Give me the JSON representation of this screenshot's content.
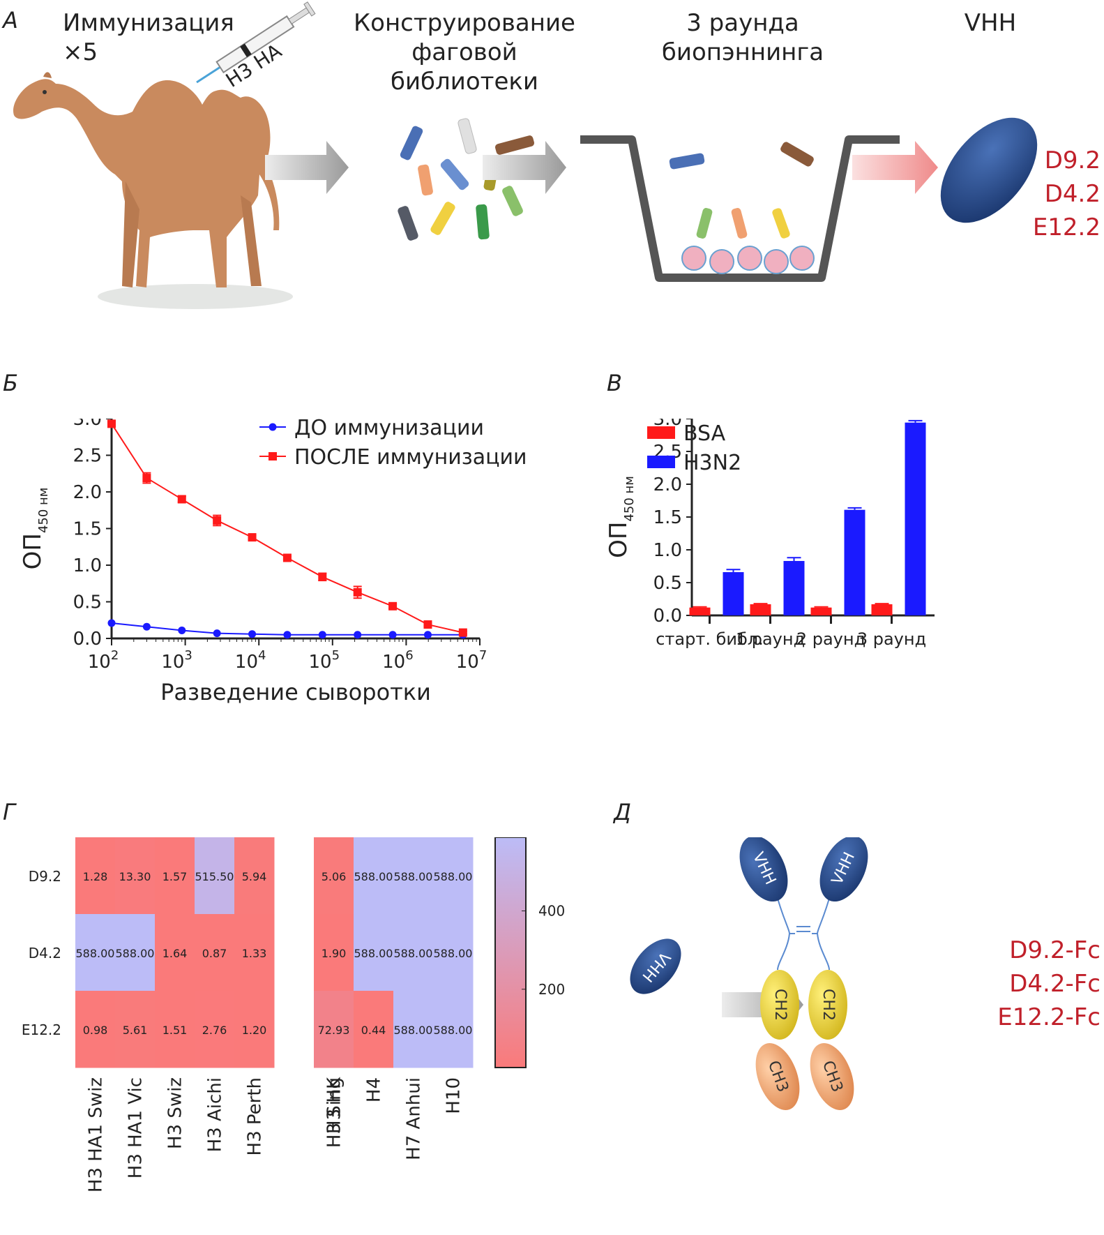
{
  "panelA": {
    "letter": "А",
    "steps": [
      {
        "text": "Иммунизация ×5"
      },
      {
        "text": "Конструирование фаговой библиотеки"
      },
      {
        "text": "3 раунда биопэннинга"
      },
      {
        "text": "VHH"
      }
    ],
    "syringe_label": "H3 HA",
    "clones": [
      "D9.2",
      "D4.2",
      "E12.2"
    ],
    "colors": {
      "camel": "#c98a5e",
      "vhh": "#2b4d8c",
      "red_text": "#c0202a",
      "plate": "#555555"
    }
  },
  "panelB": {
    "letter": "Б",
    "chart_data": {
      "type": "line",
      "xlabel": "Разведение сыворотки",
      "ylabel": "ОП",
      "ylabel_subscript": "450 нм",
      "xscale": "log",
      "xlim": [
        100,
        10000000
      ],
      "ylim": [
        0,
        3.0
      ],
      "yticks": [
        "0.0",
        "0.5",
        "1.0",
        "1.5",
        "2.0",
        "2.5",
        "3.0"
      ],
      "xticks": [
        {
          "base": "10",
          "exp": "2"
        },
        {
          "base": "10",
          "exp": "3"
        },
        {
          "base": "10",
          "exp": "4"
        },
        {
          "base": "10",
          "exp": "5"
        },
        {
          "base": "10",
          "exp": "6"
        },
        {
          "base": "10",
          "exp": "7"
        }
      ],
      "x": [
        100,
        300,
        900,
        2700,
        8100,
        24300,
        72900,
        218700,
        656100,
        1968300,
        5904900
      ],
      "legend_position": "top-right",
      "series": [
        {
          "name": "ДО иммунизации",
          "color": "#1a1aff",
          "values": [
            0.21,
            0.16,
            0.11,
            0.07,
            0.06,
            0.05,
            0.05,
            0.05,
            0.05,
            0.05,
            0.05
          ],
          "errors": [
            0.01,
            0.01,
            0.01,
            0.01,
            0.01,
            0.01,
            0.01,
            0.01,
            0.01,
            0.01,
            0.01
          ]
        },
        {
          "name": "ПОСЛЕ иммунизации",
          "color": "#ff1a1a",
          "values": [
            2.93,
            2.19,
            1.9,
            1.61,
            1.38,
            1.1,
            0.84,
            0.63,
            0.44,
            0.19,
            0.08
          ],
          "errors": [
            0.03,
            0.07,
            0.04,
            0.07,
            0.03,
            0.02,
            0.05,
            0.08,
            0.03,
            0.02,
            0.02
          ]
        }
      ]
    }
  },
  "panelV": {
    "letter": "В",
    "chart_data": {
      "type": "bar",
      "ylabel": "ОП",
      "ylabel_subscript": "450 нм",
      "ylim": [
        0,
        3.0
      ],
      "yticks": [
        "0.0",
        "0.5",
        "1.0",
        "1.5",
        "2.0",
        "2.5",
        "3.0"
      ],
      "categories": [
        "старт. библ.",
        "1 раунд",
        "2 раунд",
        "3 раунд"
      ],
      "legend_position": "top-left",
      "series": [
        {
          "name": "BSA",
          "color": "#ff1a1a",
          "values": [
            0.12,
            0.17,
            0.12,
            0.17
          ],
          "errors": [
            0.01,
            0.01,
            0.01,
            0.01
          ]
        },
        {
          "name": "H3N2",
          "color": "#1a1aff",
          "values": [
            0.66,
            0.83,
            1.61,
            2.94
          ],
          "errors": [
            0.04,
            0.05,
            0.03,
            0.03
          ]
        }
      ]
    }
  },
  "panelG": {
    "letter": "Г",
    "chart_data": {
      "type": "heatmap",
      "rows": [
        "D9.2",
        "D4.2",
        "E12.2"
      ],
      "columns": [
        "H3 HA1 Swiz",
        "H3 HA1 Vic",
        "H3 Swiz",
        "H3 Aichi",
        "H3 Perth",
        "H3 Sing",
        "H3 HK",
        "H4",
        "H7 Anhui",
        "H10"
      ],
      "values": [
        [
          "1.28",
          "13.30",
          "1.57",
          "515.50",
          "5.94",
          "",
          "5.06",
          "588.00",
          "588.00",
          "588.00"
        ],
        [
          "588.00",
          "588.00",
          "1.64",
          "0.87",
          "1.33",
          "",
          "1.90",
          "588.00",
          "588.00",
          "588.00"
        ],
        [
          "0.98",
          "5.61",
          "1.51",
          "2.76",
          "1.20",
          "",
          "72.93",
          "0.44",
          "588.00",
          "588.00"
        ]
      ],
      "colorbar_ticks": [
        "200",
        "400"
      ],
      "colorbar_range": [
        0,
        588
      ],
      "color_low": "#fa7a7a",
      "color_high": "#bcbcf7"
    }
  },
  "panelD": {
    "letter": "Д",
    "vhh_label": "VHH",
    "ch2_label": "CH2",
    "ch3_label": "CH3",
    "constructs": [
      "D9.2-Fc",
      "D4.2-Fc",
      "E12.2-Fc"
    ],
    "colors": {
      "vhh": "#2b4d8c",
      "ch2": "#e8d44a",
      "ch3": "#f0a878",
      "red_text": "#c0202a"
    }
  }
}
